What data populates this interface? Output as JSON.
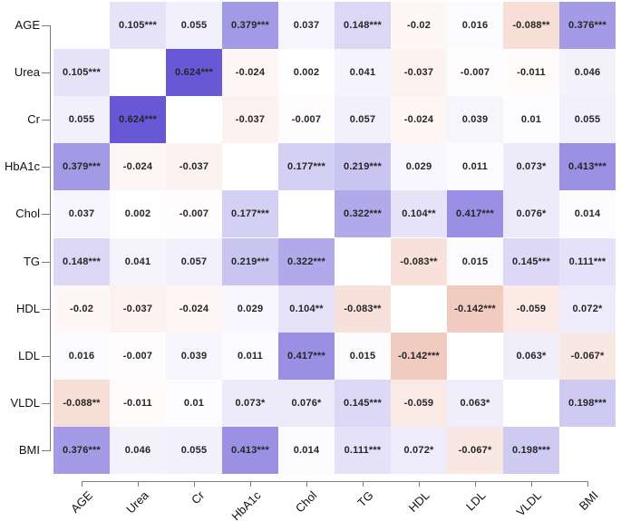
{
  "chart_data": {
    "type": "heatmap",
    "title": "",
    "variables": [
      "AGE",
      "Urea",
      "Cr",
      "HbA1c",
      "Chol",
      "TG",
      "HDL",
      "LDL",
      "VLDL",
      "BMI"
    ],
    "cell_labels": [
      [
        null,
        "0.105***",
        "0.055",
        "0.379***",
        "0.037",
        "0.148***",
        "-0.02",
        "0.016",
        "-0.088**",
        "0.376***"
      ],
      [
        "0.105***",
        null,
        "0.624***",
        "-0.024",
        "0.002",
        "0.041",
        "-0.037",
        "-0.007",
        "-0.011",
        "0.046"
      ],
      [
        "0.055",
        "0.624***",
        null,
        "-0.037",
        "-0.007",
        "0.057",
        "-0.024",
        "0.039",
        "0.01",
        "0.055"
      ],
      [
        "0.379***",
        "-0.024",
        "-0.037",
        null,
        "0.177***",
        "0.219***",
        "0.029",
        "0.011",
        "0.073*",
        "0.413***"
      ],
      [
        "0.037",
        "0.002",
        "-0.007",
        "0.177***",
        null,
        "0.322***",
        "0.104**",
        "0.417***",
        "0.076*",
        "0.014"
      ],
      [
        "0.148***",
        "0.041",
        "0.057",
        "0.219***",
        "0.322***",
        null,
        "-0.083**",
        "0.015",
        "0.145***",
        "0.111***"
      ],
      [
        "-0.02",
        "-0.037",
        "-0.024",
        "0.029",
        "0.104**",
        "-0.083**",
        null,
        "-0.142***",
        "-0.059",
        "0.072*"
      ],
      [
        "0.016",
        "-0.007",
        "0.039",
        "0.011",
        "0.417***",
        "0.015",
        "-0.142***",
        null,
        "0.063*",
        "-0.067*"
      ],
      [
        "-0.088**",
        "-0.011",
        "0.01",
        "0.073*",
        "0.076*",
        "0.145***",
        "-0.059",
        "0.063*",
        null,
        "0.198***"
      ],
      [
        "0.376***",
        "0.046",
        "0.055",
        "0.413***",
        "0.014",
        "0.111***",
        "0.072*",
        "-0.067*",
        "0.198***",
        null
      ]
    ],
    "values": [
      [
        null,
        0.105,
        0.055,
        0.379,
        0.037,
        0.148,
        -0.02,
        0.016,
        -0.088,
        0.376
      ],
      [
        0.105,
        null,
        0.624,
        -0.024,
        0.002,
        0.041,
        -0.037,
        -0.007,
        -0.011,
        0.046
      ],
      [
        0.055,
        0.624,
        null,
        -0.037,
        -0.007,
        0.057,
        -0.024,
        0.039,
        0.01,
        0.055
      ],
      [
        0.379,
        -0.024,
        -0.037,
        null,
        0.177,
        0.219,
        0.029,
        0.011,
        0.073,
        0.413
      ],
      [
        0.037,
        0.002,
        -0.007,
        0.177,
        null,
        0.322,
        0.104,
        0.417,
        0.076,
        0.014
      ],
      [
        0.148,
        0.041,
        0.057,
        0.219,
        0.322,
        null,
        -0.083,
        0.015,
        0.145,
        0.111
      ],
      [
        -0.02,
        -0.037,
        -0.024,
        0.029,
        0.104,
        -0.083,
        null,
        -0.142,
        -0.059,
        0.072
      ],
      [
        0.016,
        -0.007,
        0.039,
        0.011,
        0.417,
        0.015,
        -0.142,
        null,
        0.063,
        -0.067
      ],
      [
        -0.088,
        -0.011,
        0.01,
        0.073,
        0.076,
        0.145,
        -0.059,
        0.063,
        null,
        0.198
      ],
      [
        0.376,
        0.046,
        0.055,
        0.413,
        0.014,
        0.111,
        0.072,
        -0.067,
        0.198,
        null
      ]
    ],
    "diagonal": "blank",
    "legend_position": "none",
    "grid": "off",
    "colors": {
      "background": "#ffffff",
      "zero": "#ffffff",
      "positive_max": "#6858d6",
      "negative_max": "#d3502b",
      "cell_text": "#262626",
      "axis_text": "#111111",
      "axis_line": "#7d7d7d"
    },
    "color_scale": {
      "positive_abs_max": 0.624,
      "negative_abs_max": 0.48
    }
  }
}
